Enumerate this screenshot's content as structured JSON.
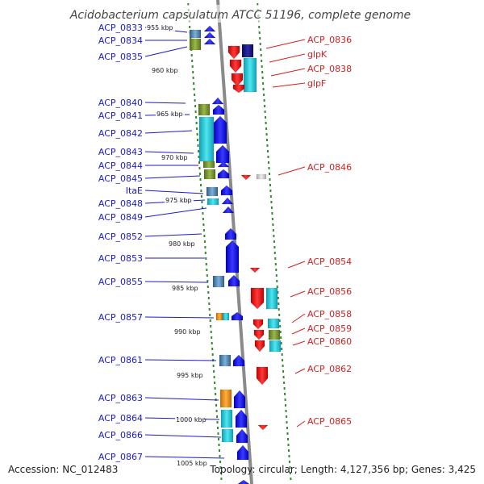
{
  "title": "Acidobacterium capsulatum ATCC 51196, complete genome",
  "accession": "Accession: NC_012483",
  "topology": "Topology: circular; Length: 4,127,356 bp; Genes: 3,425",
  "colors": {
    "left_label": "#1a1acc",
    "right_label": "#d42020",
    "forward_gene": "#1010ee",
    "reverse_gene": "#ee1010",
    "cyan_block": "#19c8d8",
    "olive_block": "#6f8c2a",
    "steel_block": "#4f7fa8",
    "navy_block": "#15157a",
    "orange_block": "#f08a10",
    "dots": "#2e8b2e",
    "backbone": "#888888"
  },
  "scale_ticks": [
    "955 kbp",
    "960 kbp",
    "965 kbp",
    "970 kbp",
    "975 kbp",
    "980 kbp",
    "985 kbp",
    "990 kbp",
    "995 kbp",
    "1000 kbp",
    "1005 kbp"
  ],
  "left_genes": [
    "ACP_0833",
    "ACP_0834",
    "ACP_0835",
    "ACP_0840",
    "ACP_0841",
    "ACP_0842",
    "ACP_0843",
    "ACP_0844",
    "ACP_0845",
    "ItaE",
    "ACP_0848",
    "ACP_0849",
    "ACP_0852",
    "ACP_0853",
    "ACP_0855",
    "ACP_0857",
    "ACP_0861",
    "ACP_0863",
    "ACP_0864",
    "ACP_0866",
    "ACP_0867"
  ],
  "right_genes": [
    "ACP_0836",
    "glpK",
    "ACP_0838",
    "glpF",
    "ACP_0846",
    "ACP_0854",
    "ACP_0856",
    "ACP_0858",
    "ACP_0859",
    "ACP_0860",
    "ACP_0862",
    "ACP_0865"
  ]
}
